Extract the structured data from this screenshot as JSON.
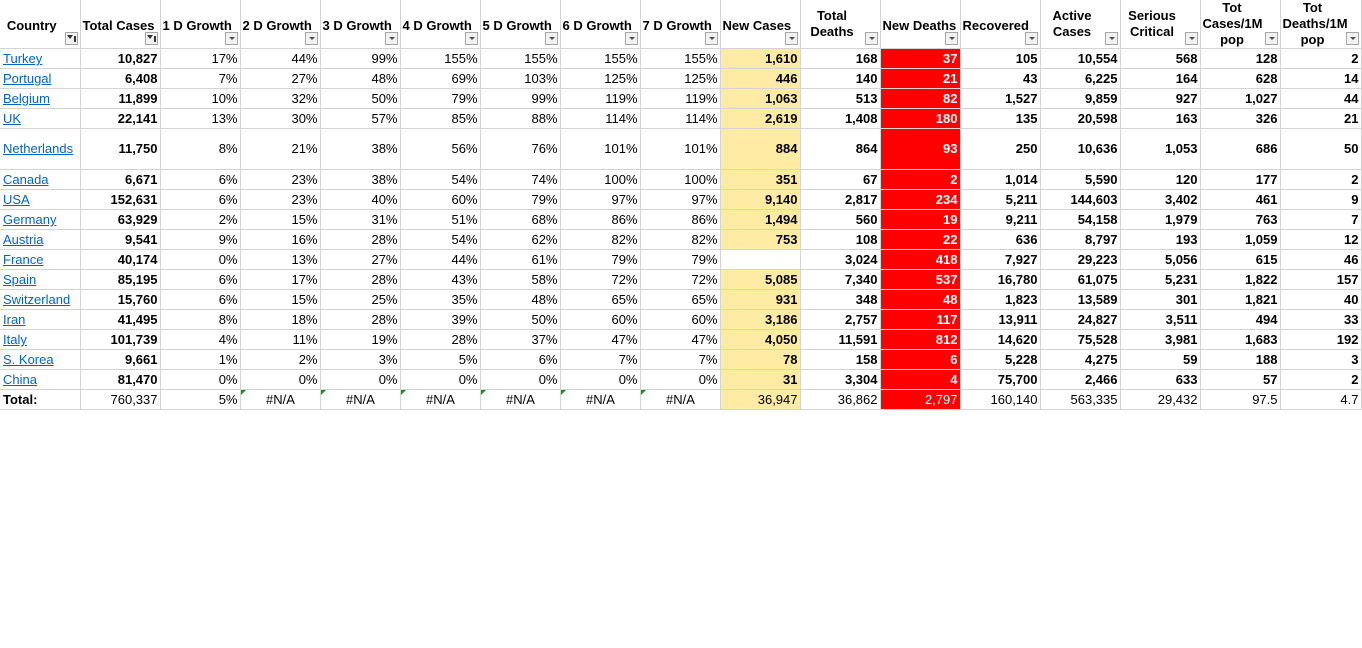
{
  "headers": [
    {
      "label": "Country",
      "filtered": true
    },
    {
      "label": "Total Cases",
      "filtered": true
    },
    {
      "label": "1 D Growth",
      "filtered": false
    },
    {
      "label": "2 D Growth",
      "filtered": false
    },
    {
      "label": "3 D Growth",
      "filtered": false
    },
    {
      "label": "4 D Growth",
      "filtered": false
    },
    {
      "label": "5 D Growth",
      "filtered": false
    },
    {
      "label": "6 D Growth",
      "filtered": false
    },
    {
      "label": "7 D Growth",
      "filtered": false
    },
    {
      "label": "New Cases",
      "filtered": false
    },
    {
      "label": "Total Deaths",
      "filtered": false
    },
    {
      "label": "New Deaths",
      "filtered": false
    },
    {
      "label": "Recovered",
      "filtered": false
    },
    {
      "label": "Active Cases",
      "filtered": false
    },
    {
      "label": "Serious Critical",
      "filtered": false
    },
    {
      "label": "Tot Cases/1M pop",
      "filtered": false
    },
    {
      "label": "Tot Deaths/1M pop",
      "filtered": false
    }
  ],
  "rows": [
    [
      "Turkey",
      "10,827",
      "17%",
      "44%",
      "99%",
      "155%",
      "155%",
      "155%",
      "155%",
      "1,610",
      "168",
      "37",
      "105",
      "10,554",
      "568",
      "128",
      "2"
    ],
    [
      "Portugal",
      "6,408",
      "7%",
      "27%",
      "48%",
      "69%",
      "103%",
      "125%",
      "125%",
      "446",
      "140",
      "21",
      "43",
      "6,225",
      "164",
      "628",
      "14"
    ],
    [
      "Belgium",
      "11,899",
      "10%",
      "32%",
      "50%",
      "79%",
      "99%",
      "119%",
      "119%",
      "1,063",
      "513",
      "82",
      "1,527",
      "9,859",
      "927",
      "1,027",
      "44"
    ],
    [
      "UK",
      "22,141",
      "13%",
      "30%",
      "57%",
      "85%",
      "88%",
      "114%",
      "114%",
      "2,619",
      "1,408",
      "180",
      "135",
      "20,598",
      "163",
      "326",
      "21"
    ],
    [
      "Netherlands",
      "11,750",
      "8%",
      "21%",
      "38%",
      "56%",
      "76%",
      "101%",
      "101%",
      "884",
      "864",
      "93",
      "250",
      "10,636",
      "1,053",
      "686",
      "50"
    ],
    [
      "Canada",
      "6,671",
      "6%",
      "23%",
      "38%",
      "54%",
      "74%",
      "100%",
      "100%",
      "351",
      "67",
      "2",
      "1,014",
      "5,590",
      "120",
      "177",
      "2"
    ],
    [
      "USA",
      "152,631",
      "6%",
      "23%",
      "40%",
      "60%",
      "79%",
      "97%",
      "97%",
      "9,140",
      "2,817",
      "234",
      "5,211",
      "144,603",
      "3,402",
      "461",
      "9"
    ],
    [
      "Germany",
      "63,929",
      "2%",
      "15%",
      "31%",
      "51%",
      "68%",
      "86%",
      "86%",
      "1,494",
      "560",
      "19",
      "9,211",
      "54,158",
      "1,979",
      "763",
      "7"
    ],
    [
      "Austria",
      "9,541",
      "9%",
      "16%",
      "28%",
      "54%",
      "62%",
      "82%",
      "82%",
      "753",
      "108",
      "22",
      "636",
      "8,797",
      "193",
      "1,059",
      "12"
    ],
    [
      "France",
      "40,174",
      "0%",
      "13%",
      "27%",
      "44%",
      "61%",
      "79%",
      "79%",
      "",
      "3,024",
      "418",
      "7,927",
      "29,223",
      "5,056",
      "615",
      "46"
    ],
    [
      "Spain",
      "85,195",
      "6%",
      "17%",
      "28%",
      "43%",
      "58%",
      "72%",
      "72%",
      "5,085",
      "7,340",
      "537",
      "16,780",
      "61,075",
      "5,231",
      "1,822",
      "157"
    ],
    [
      "Switzerland",
      "15,760",
      "6%",
      "15%",
      "25%",
      "35%",
      "48%",
      "65%",
      "65%",
      "931",
      "348",
      "48",
      "1,823",
      "13,589",
      "301",
      "1,821",
      "40"
    ],
    [
      "Iran",
      "41,495",
      "8%",
      "18%",
      "28%",
      "39%",
      "50%",
      "60%",
      "60%",
      "3,186",
      "2,757",
      "117",
      "13,911",
      "24,827",
      "3,511",
      "494",
      "33"
    ],
    [
      "Italy",
      "101,739",
      "4%",
      "11%",
      "19%",
      "28%",
      "37%",
      "47%",
      "47%",
      "4,050",
      "11,591",
      "812",
      "14,620",
      "75,528",
      "3,981",
      "1,683",
      "192"
    ],
    [
      "S. Korea",
      "9,661",
      "1%",
      "2%",
      "3%",
      "5%",
      "6%",
      "7%",
      "7%",
      "78",
      "158",
      "6",
      "5,228",
      "4,275",
      "59",
      "188",
      "3"
    ],
    [
      "China",
      "81,470",
      "0%",
      "0%",
      "0%",
      "0%",
      "0%",
      "0%",
      "0%",
      "31",
      "3,304",
      "4",
      "75,700",
      "2,466",
      "633",
      "57",
      "2"
    ]
  ],
  "total": [
    "Total:",
    "760,337",
    "5%",
    "#N/A",
    "#N/A",
    "#N/A",
    "#N/A",
    "#N/A",
    "#N/A",
    "36,947",
    "36,862",
    "2,797",
    "160,140",
    "563,335",
    "29,432",
    "97.5",
    "4.7"
  ],
  "colors": {
    "new_cases_bg": "#ffeba4",
    "new_deaths_bg": "#ff0000",
    "link": "#0563c1",
    "grid": "#d4d4d4"
  }
}
